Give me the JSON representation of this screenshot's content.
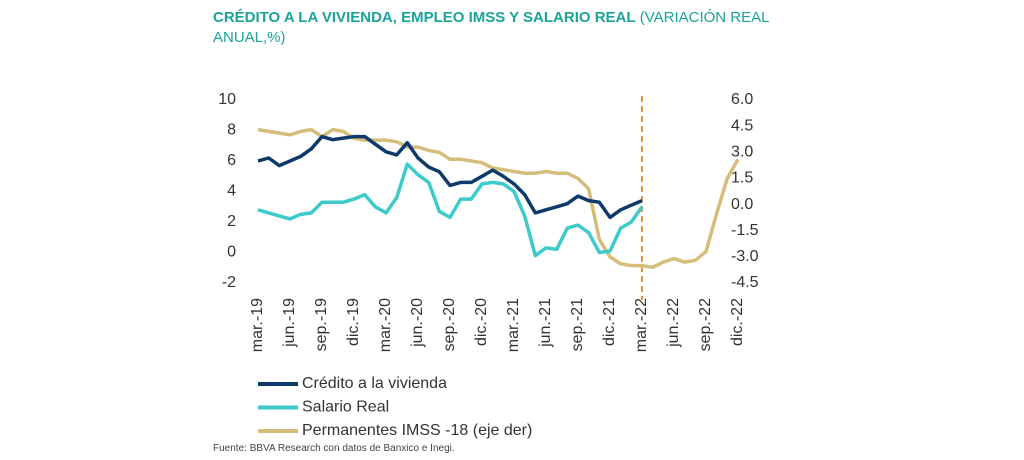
{
  "chart_data": {
    "type": "line",
    "title": "CRÉDITO A LA VIVIENDA, EMPLEO IMSS Y SALARIO REAL",
    "subtitle": "(VARIACIÓN REAL ANUAL,%)",
    "source": "Fuente: BBVA Research con datos de Banxico e Inegi.",
    "categories": [
      "mar.-19",
      null,
      null,
      "jun.-19",
      null,
      null,
      "sep.-19",
      null,
      null,
      "dic.-19",
      null,
      null,
      "mar.-20",
      null,
      null,
      "jun.-20",
      null,
      null,
      "sep.-20",
      null,
      null,
      "dic.-20",
      null,
      null,
      "mar.-21",
      null,
      null,
      "jun.-21",
      null,
      null,
      "sep.-21",
      null,
      null,
      "dic.-21",
      null,
      null,
      "mar.-22",
      null,
      null,
      "jun.-22",
      null,
      null,
      "sep.-22",
      null,
      null,
      "dic.-22"
    ],
    "ylim": [
      -2,
      10
    ],
    "yticks": [
      10,
      8,
      6,
      4,
      2,
      0,
      -2
    ],
    "y2lim": [
      -4.5,
      6
    ],
    "y2ticks": [
      {
        "value": 6,
        "label": "6.0"
      },
      4.5,
      {
        "value": 3,
        "label": "3.0"
      },
      1.5,
      {
        "value": 0,
        "label": "0.0"
      },
      -1.5,
      {
        "value": -3,
        "label": "-3.0"
      },
      -4.5
    ],
    "grid": false,
    "series": [
      {
        "name": "Crédito a la vivienda",
        "color": "#0e3a6b",
        "values": [
          6.0,
          6.2,
          5.7,
          6.0,
          6.3,
          6.8,
          7.6,
          7.4,
          7.5,
          7.6,
          7.6,
          7.1,
          6.6,
          6.4,
          7.2,
          6.2,
          5.6,
          5.3,
          4.4,
          4.6,
          4.6,
          5.0,
          5.4,
          5.0,
          4.5,
          3.8,
          2.6,
          2.8,
          3.0,
          3.2,
          3.7,
          3.4,
          3.3,
          2.3,
          2.8,
          3.1,
          3.4,
          null,
          null,
          null,
          null,
          null,
          null,
          null,
          null,
          null
        ]
      },
      {
        "name": "Salario Real",
        "color": "#3ccaca",
        "values": [
          2.8,
          2.6,
          2.4,
          2.2,
          2.5,
          2.6,
          3.3,
          3.3,
          3.3,
          3.5,
          3.8,
          3.0,
          2.6,
          3.6,
          5.8,
          5.1,
          4.6,
          2.7,
          2.3,
          3.5,
          3.5,
          4.5,
          4.6,
          4.5,
          4.0,
          2.4,
          -0.2,
          0.3,
          0.2,
          1.6,
          1.8,
          1.3,
          0.0,
          0.1,
          1.6,
          2.0,
          3.0,
          null,
          null,
          null,
          null,
          null,
          null,
          null,
          null,
          null
        ]
      },
      {
        "name": "Permanentes IMSS -18 (eje der)",
        "color": "#d5bd7b",
        "axis": "y2",
        "values": [
          4.3,
          4.2,
          4.1,
          4.0,
          4.2,
          4.3,
          3.9,
          4.3,
          4.2,
          3.8,
          3.7,
          3.7,
          3.7,
          3.6,
          3.3,
          3.3,
          3.1,
          3.0,
          2.6,
          2.6,
          2.5,
          2.4,
          2.1,
          2.0,
          1.9,
          1.8,
          1.8,
          1.9,
          1.8,
          1.8,
          1.5,
          0.9,
          -2.0,
          -3.0,
          -3.4,
          -3.5,
          -3.5,
          -3.6,
          -3.3,
          -3.1,
          -3.3,
          -3.2,
          -2.7,
          -0.5,
          1.5,
          2.6
        ]
      }
    ]
  }
}
